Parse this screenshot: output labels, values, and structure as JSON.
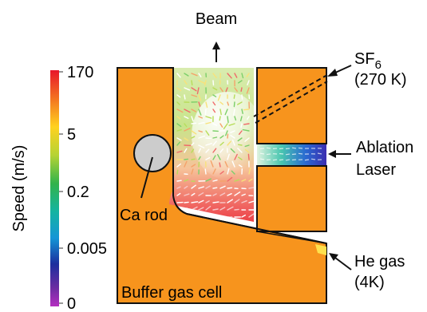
{
  "labels": {
    "beam": "Beam",
    "sf6_main": "SF",
    "sf6_sub": "6",
    "sf6_temp": "(270 K)",
    "ablation_line1": "Ablation",
    "ablation_line2": "Laser",
    "he_gas_line1": "He gas",
    "he_gas_line2": "(4K)",
    "ca_rod": "Ca rod",
    "cell": "Buffer gas cell"
  },
  "colorbar": {
    "axis_label": "Speed (m/s)",
    "ticks": [
      "170",
      "5",
      "0.2",
      "0.005",
      "0"
    ]
  },
  "colors": {
    "cell": "#f7941d",
    "rod": "#cccccc",
    "outline": "#111111"
  }
}
